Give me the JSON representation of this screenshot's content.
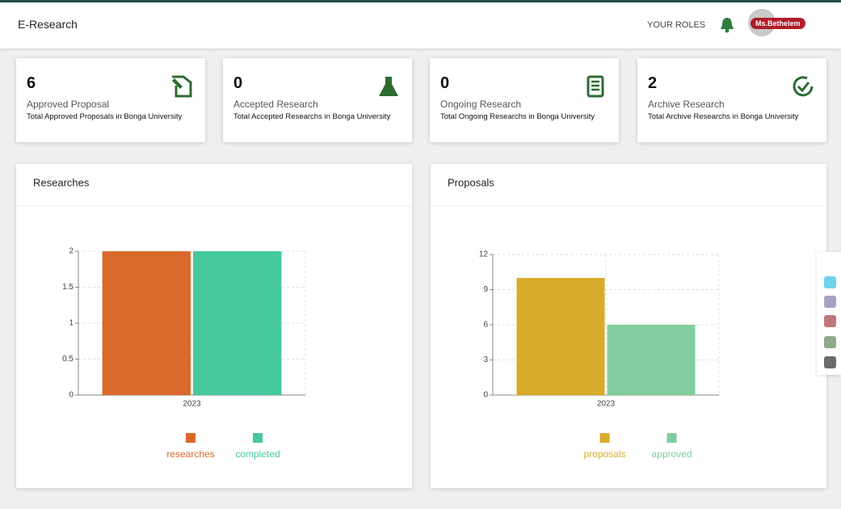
{
  "header": {
    "title": "E-Research",
    "roles": "YOUR ROLES",
    "user": "Ms.Bethelem"
  },
  "cards": [
    {
      "value": 6,
      "title": "Approved Proposal",
      "subtitle": "Total Approved Proposals in Bonga University"
    },
    {
      "value": 0,
      "title": "Accepted Research",
      "subtitle": "Total Accepted Researchs in Bonga University"
    },
    {
      "value": 0,
      "title": "Ongoing Research",
      "subtitle": "Total Ongoing Researchs in Bonga University"
    },
    {
      "value": 2,
      "title": "Archive Research",
      "subtitle": "Total Archive Researchs in Bonga University"
    }
  ],
  "chart_data": [
    {
      "type": "bar",
      "title": "Researches",
      "categories": [
        "2023"
      ],
      "series": [
        {
          "name": "researches",
          "color": "#d96a2b",
          "values": [
            2
          ]
        },
        {
          "name": "completed",
          "color": "#45c99d",
          "values": [
            2
          ]
        }
      ],
      "ylim": [
        0,
        2
      ],
      "yticks": [
        0,
        0.5,
        1,
        1.5,
        2
      ],
      "grid": true
    },
    {
      "type": "bar",
      "title": "Proposals",
      "categories": [
        "2023"
      ],
      "series": [
        {
          "name": "proposals",
          "color": "#d8ac2a",
          "values": [
            10
          ]
        },
        {
          "name": "approved",
          "color": "#82cc9f",
          "values": [
            6
          ]
        }
      ],
      "ylim": [
        0,
        12
      ],
      "yticks": [
        0,
        3,
        6,
        9,
        12
      ],
      "grid": true
    }
  ]
}
